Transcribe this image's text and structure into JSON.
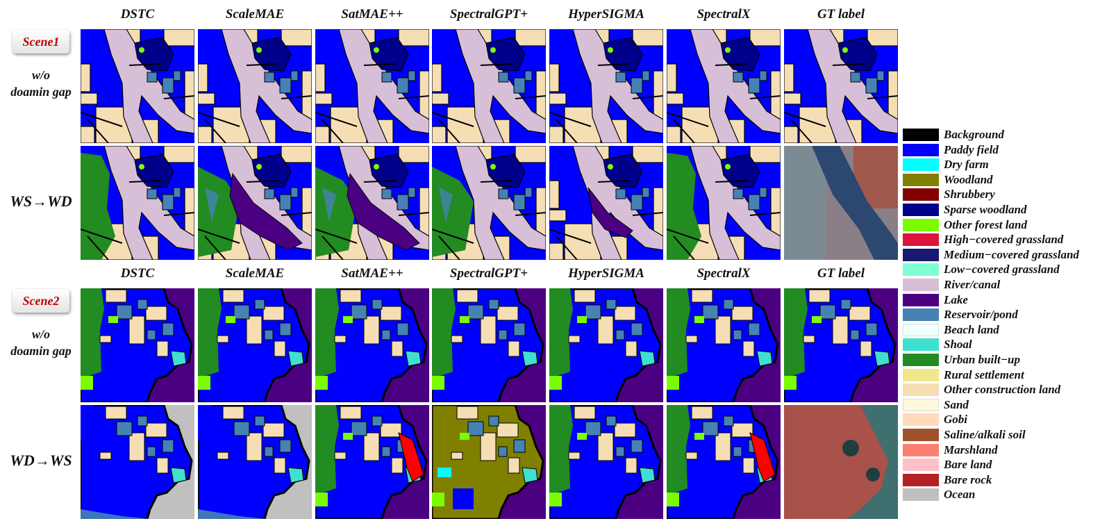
{
  "methods": [
    "DSTC",
    "ScaleMAE",
    "SatMAE++",
    "SpectralGPT+",
    "HyperSIGMA",
    "SpectralX",
    "GT label"
  ],
  "scenes": [
    {
      "label": "Scene1",
      "rows": [
        {
          "lines": [
            "w/o",
            "doamin gap"
          ]
        },
        {
          "lines": [
            "WS→WD"
          ]
        }
      ]
    },
    {
      "label": "Scene2",
      "rows": [
        {
          "lines": [
            "w/o",
            "doamin gap"
          ]
        },
        {
          "lines": [
            "WD→WS"
          ]
        }
      ]
    }
  ],
  "legend": [
    {
      "label": "Background",
      "color": "#000000"
    },
    {
      "label": "Paddy field",
      "color": "#0000ff"
    },
    {
      "label": "Dry farm",
      "color": "#00ffff"
    },
    {
      "label": "Woodland",
      "color": "#808000"
    },
    {
      "label": "Shrubbery",
      "color": "#800000"
    },
    {
      "label": "Sparse woodland",
      "color": "#00008b"
    },
    {
      "label": "Other forest land",
      "color": "#7cfc00"
    },
    {
      "label": "High−covered grassland",
      "color": "#dc143c"
    },
    {
      "label": "Medium−covered grassland",
      "color": "#191970"
    },
    {
      "label": "Low−covered grassland",
      "color": "#7fffd4"
    },
    {
      "label": "River/canal",
      "color": "#d8bfd8"
    },
    {
      "label": "Lake",
      "color": "#4b0082"
    },
    {
      "label": "Reservoir/pond",
      "color": "#4682b4"
    },
    {
      "label": "Beach land",
      "color": "#f0ffff"
    },
    {
      "label": "Shoal",
      "color": "#40e0d0"
    },
    {
      "label": "Urban built−up",
      "color": "#228b22"
    },
    {
      "label": "Rural settlement",
      "color": "#f0e68c"
    },
    {
      "label": "Other construction land",
      "color": "#f5deb3"
    },
    {
      "label": "Sand",
      "color": "#fff8dc"
    },
    {
      "label": "Gobi",
      "color": "#ffdab9"
    },
    {
      "label": "Saline/alkali soil",
      "color": "#a0522d"
    },
    {
      "label": "Marshland",
      "color": "#fa8072"
    },
    {
      "label": "Bare land",
      "color": "#ffc0cb"
    },
    {
      "label": "Bare rock",
      "color": "#b22222"
    },
    {
      "label": "Ocean",
      "color": "#c0c0c0"
    }
  ]
}
